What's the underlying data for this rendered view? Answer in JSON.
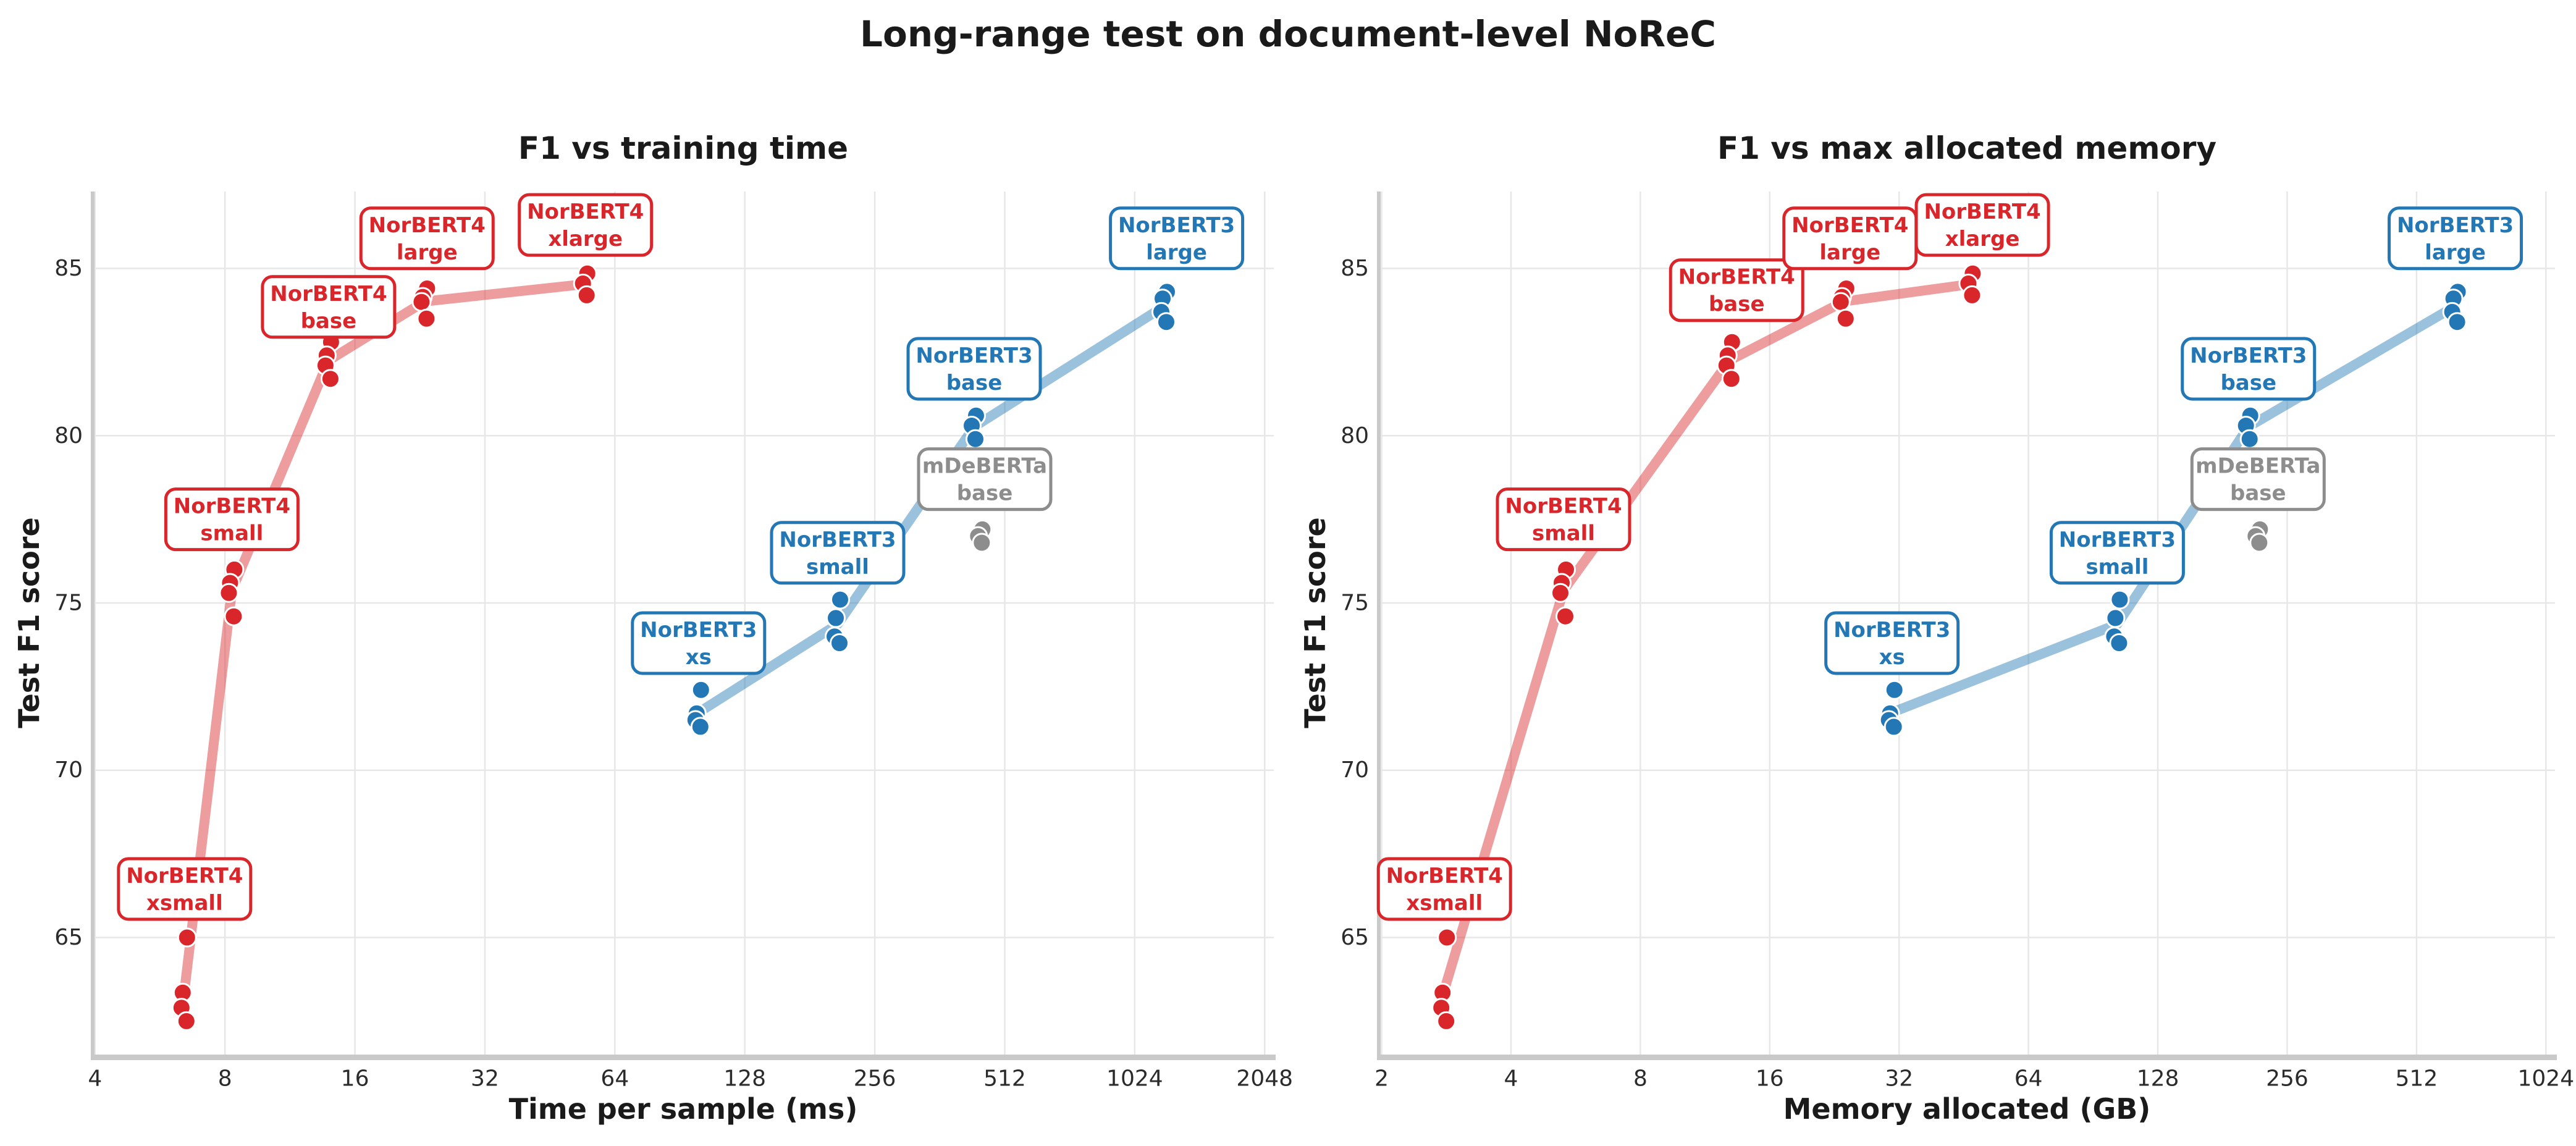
{
  "title": "Long-range test on document-level NoReC",
  "colors": {
    "norbert4": "#d9262b",
    "norbert3": "#2277b4",
    "mdeberta": "#8d8d8d",
    "grid": "#e7e7e7",
    "spine": "#c9c9c9",
    "tick_text": "#2b2b2b",
    "background": "#ffffff"
  },
  "chart_data": {
    "type": "scatter",
    "suptitle": "Long-range test on document-level NoReC",
    "ylabel": "Test F1 score",
    "yticks": [
      65,
      70,
      75,
      80,
      85
    ],
    "ylim": [
      61.5,
      87.3
    ],
    "grid": true,
    "legend": "none (boxed annotations next to clusters)",
    "plots": [
      {
        "title": "F1 vs training time",
        "xlabel": "Time per sample (ms)",
        "xscale": "log2",
        "xticks": [
          4,
          8,
          16,
          32,
          64,
          128,
          256,
          512,
          1024,
          2048
        ],
        "xlim": [
          3.95,
          2150
        ],
        "xkey": "time_ms",
        "labelkey": "label_time"
      },
      {
        "title": "F1 vs max allocated memory",
        "xlabel": "Memory allocated (GB)",
        "xscale": "log2",
        "xticks": [
          2,
          4,
          8,
          16,
          32,
          64,
          128,
          256,
          512,
          1024
        ],
        "xlim": [
          1.97,
          1075
        ],
        "xkey": "mem_gb",
        "labelkey": "label_mem"
      }
    ],
    "series": [
      {
        "name": "NorBERT4",
        "color": "#d9262b",
        "line": true,
        "models": [
          {
            "line1": "NorBERT4",
            "line2": "xsmall",
            "time_ms": 6.45,
            "mem_gb": 2.8,
            "f1": [
              65.0,
              63.35,
              62.9,
              62.5
            ],
            "label_time": [
              6.45,
              66.45
            ],
            "label_mem": [
              2.8,
              66.45
            ]
          },
          {
            "line1": "NorBERT4",
            "line2": "small",
            "time_ms": 8.3,
            "mem_gb": 5.3,
            "f1": [
              76.0,
              75.6,
              75.3,
              74.6
            ],
            "label_time": [
              8.3,
              77.5
            ],
            "label_mem": [
              5.3,
              77.5
            ]
          },
          {
            "line1": "NorBERT4",
            "line2": "base",
            "time_ms": 13.9,
            "mem_gb": 12.9,
            "f1": [
              82.8,
              82.4,
              82.1,
              81.7
            ],
            "label_time": [
              13.9,
              83.85
            ],
            "label_mem": [
              13.4,
              84.35
            ]
          },
          {
            "line1": "NorBERT4",
            "line2": "large",
            "time_ms": 23.2,
            "mem_gb": 23.8,
            "f1": [
              84.4,
              84.15,
              84.0,
              83.5
            ],
            "label_time": [
              23.5,
              85.9
            ],
            "label_mem": [
              24.6,
              85.9
            ]
          },
          {
            "line1": "NorBERT4",
            "line2": "xlarge",
            "time_ms": 54.7,
            "mem_gb": 47.0,
            "f1": [
              84.85,
              84.55,
              84.2
            ],
            "label_time": [
              54.7,
              86.3
            ],
            "label_mem": [
              50.0,
              86.3
            ]
          }
        ]
      },
      {
        "name": "NorBERT3",
        "color": "#2277b4",
        "line": true,
        "models": [
          {
            "line1": "NorBERT3",
            "line2": "xs",
            "time_ms": 100,
            "mem_gb": 30.8,
            "f1": [
              72.4,
              71.7,
              71.5,
              71.3
            ],
            "label_time": [
              100,
              73.8
            ],
            "label_mem": [
              30.8,
              73.8
            ]
          },
          {
            "line1": "NorBERT3",
            "line2": "small",
            "time_ms": 210,
            "mem_gb": 103,
            "f1": [
              75.1,
              74.55,
              74.0,
              73.8
            ],
            "label_time": [
              210,
              76.5
            ],
            "label_mem": [
              103,
              76.5
            ]
          },
          {
            "line1": "NorBERT3",
            "line2": "base",
            "time_ms": 435,
            "mem_gb": 208,
            "f1": [
              80.6,
              80.3,
              79.9
            ],
            "label_time": [
              435,
              82.0
            ],
            "label_mem": [
              208,
              82.0
            ]
          },
          {
            "line1": "NorBERT3",
            "line2": "large",
            "time_ms": 1200,
            "mem_gb": 630,
            "f1": [
              84.3,
              84.1,
              83.7,
              83.4
            ],
            "label_time": [
              1280,
              85.9
            ],
            "label_mem": [
              630,
              85.9
            ]
          }
        ]
      },
      {
        "name": "mDeBERTa",
        "color": "#8d8d8d",
        "line": false,
        "models": [
          {
            "line1": "mDeBERTa",
            "line2": "base",
            "time_ms": 450,
            "mem_gb": 219,
            "f1": [
              77.2,
              77.0,
              76.8
            ],
            "label_time": [
              460,
              78.7
            ],
            "label_mem": [
              219,
              78.7
            ]
          }
        ]
      }
    ]
  }
}
